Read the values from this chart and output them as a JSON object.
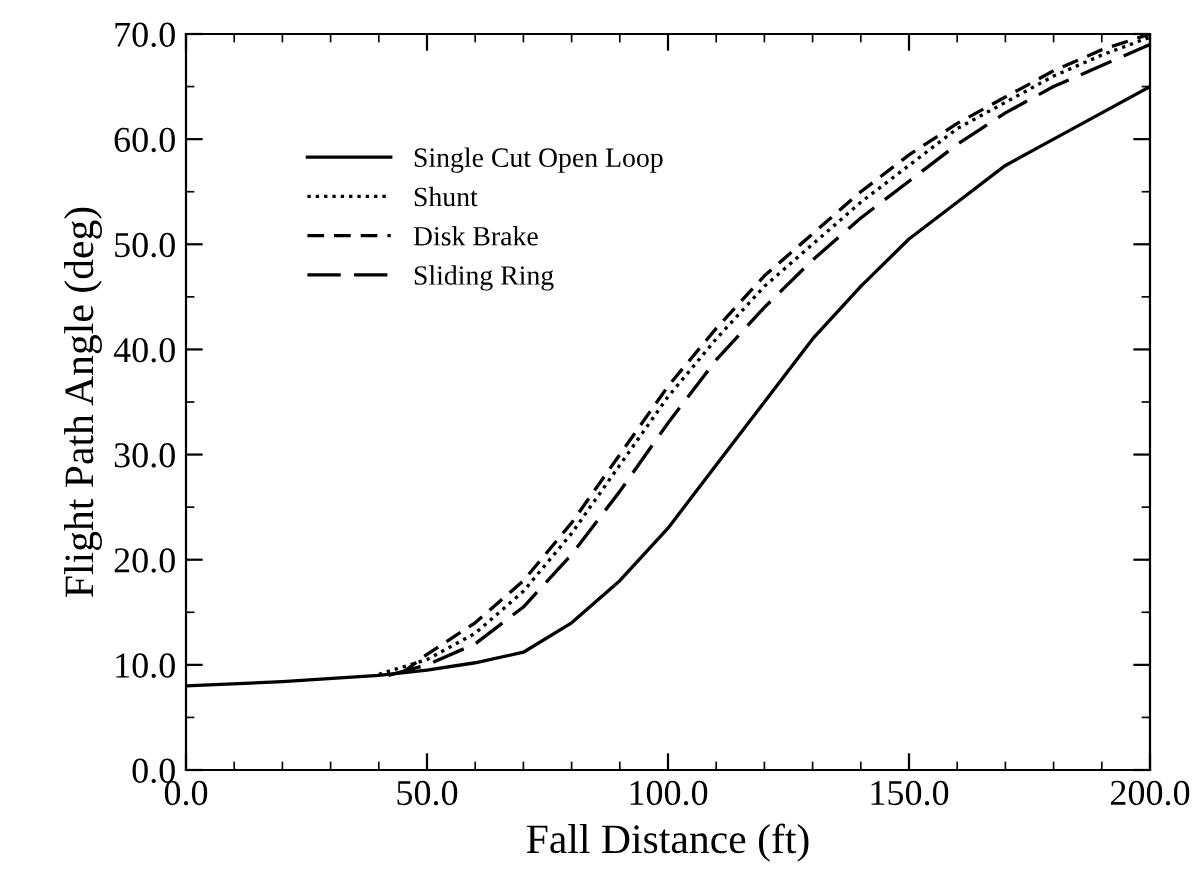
{
  "chart_data": {
    "type": "line",
    "xlabel": "Fall Distance (ft)",
    "ylabel": "Flight Path Angle (deg)",
    "xlim": [
      0,
      200
    ],
    "ylim": [
      0,
      70
    ],
    "xticks": [
      {
        "value": 0,
        "label": "0.0"
      },
      {
        "value": 50,
        "label": "50.0"
      },
      {
        "value": 100,
        "label": "100.0"
      },
      {
        "value": 150,
        "label": "150.0"
      },
      {
        "value": 200,
        "label": "200.0"
      }
    ],
    "yticks": [
      {
        "value": 0,
        "label": "0.0"
      },
      {
        "value": 10,
        "label": "10.0"
      },
      {
        "value": 20,
        "label": "20.0"
      },
      {
        "value": 30,
        "label": "30.0"
      },
      {
        "value": 40,
        "label": "40.0"
      },
      {
        "value": 50,
        "label": "50.0"
      },
      {
        "value": 60,
        "label": "60.0"
      },
      {
        "value": 70,
        "label": "70.0"
      }
    ],
    "grid": false,
    "legend": "top left",
    "x": [
      0,
      20,
      40,
      50,
      60,
      70,
      80,
      90,
      100,
      110,
      120,
      130,
      140,
      150,
      160,
      170,
      180,
      190,
      200
    ],
    "series": [
      {
        "name": "Single Cut Open Loop",
        "color": "#000000",
        "line_style": "solid",
        "values": [
          8,
          8.4,
          9,
          9.5,
          10.2,
          11.2,
          14,
          18,
          23,
          29,
          35,
          41,
          46,
          50.5,
          54,
          57.5,
          60,
          62.5,
          65
        ]
      },
      {
        "name": "Shunt",
        "color": "#000000",
        "line_style": "dotted",
        "x": [
          40,
          50,
          60,
          70,
          80,
          90,
          100,
          110,
          120,
          130,
          140,
          150,
          160,
          170,
          180,
          190,
          200
        ],
        "values": [
          9.1,
          10.5,
          13,
          17,
          22.5,
          29,
          35.5,
          41,
          46,
          50,
          54,
          57.5,
          61,
          63.5,
          66,
          68,
          69.7
        ]
      },
      {
        "name": "Disk Brake",
        "color": "#000000",
        "line_style": "dashed",
        "x": [
          45,
          50,
          60,
          70,
          80,
          90,
          100,
          110,
          120,
          130,
          140,
          150,
          160,
          170,
          180,
          190,
          200
        ],
        "values": [
          9.3,
          11,
          14,
          18,
          23.5,
          30,
          36.5,
          42,
          47,
          51,
          55,
          58.5,
          61.5,
          64,
          66.5,
          68.5,
          70
        ]
      },
      {
        "name": "Sliding Ring",
        "color": "#000000",
        "line_style": "longdash",
        "x": [
          42,
          50,
          60,
          70,
          80,
          90,
          100,
          110,
          120,
          130,
          140,
          150,
          160,
          170,
          180,
          190,
          200
        ],
        "values": [
          9,
          10,
          12,
          15.5,
          20.5,
          26.5,
          33,
          39,
          44,
          48.5,
          52.5,
          56,
          59.5,
          62.5,
          65,
          67,
          69
        ]
      }
    ]
  }
}
